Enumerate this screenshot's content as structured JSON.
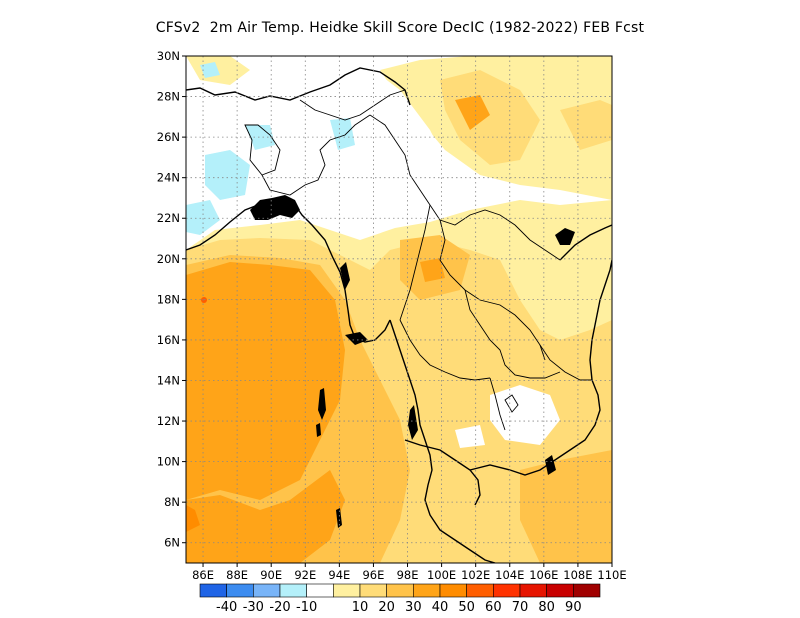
{
  "title": "CFSv2  2m Air Temp. Heidke Skill Score DecIC (1982-2022) FEB Fcst",
  "map": {
    "lon_range": [
      85,
      110
    ],
    "lat_range": [
      5,
      30
    ],
    "x_ticks": [
      "86E",
      "88E",
      "90E",
      "92E",
      "94E",
      "96E",
      "98E",
      "100E",
      "102E",
      "104E",
      "106E",
      "108E",
      "110E"
    ],
    "y_ticks": [
      "6N",
      "8N",
      "10N",
      "12N",
      "14N",
      "16N",
      "18N",
      "20N",
      "22N",
      "24N",
      "26N",
      "28N",
      "30N"
    ],
    "grid": "dotted"
  },
  "colorbar": {
    "colors": [
      "#1f64e6",
      "#3c8cf0",
      "#78b4f8",
      "#b4f0fa",
      "#ffffff",
      "#fff0a0",
      "#ffdc78",
      "#ffc34a",
      "#ffa418",
      "#ff8c00",
      "#ff5e00",
      "#ff3200",
      "#e61400",
      "#c80000",
      "#a00000"
    ],
    "labels": [
      "-40",
      "-30",
      "-20",
      "-10",
      "10",
      "20",
      "30",
      "40",
      "50",
      "60",
      "70",
      "80",
      "90"
    ]
  }
}
